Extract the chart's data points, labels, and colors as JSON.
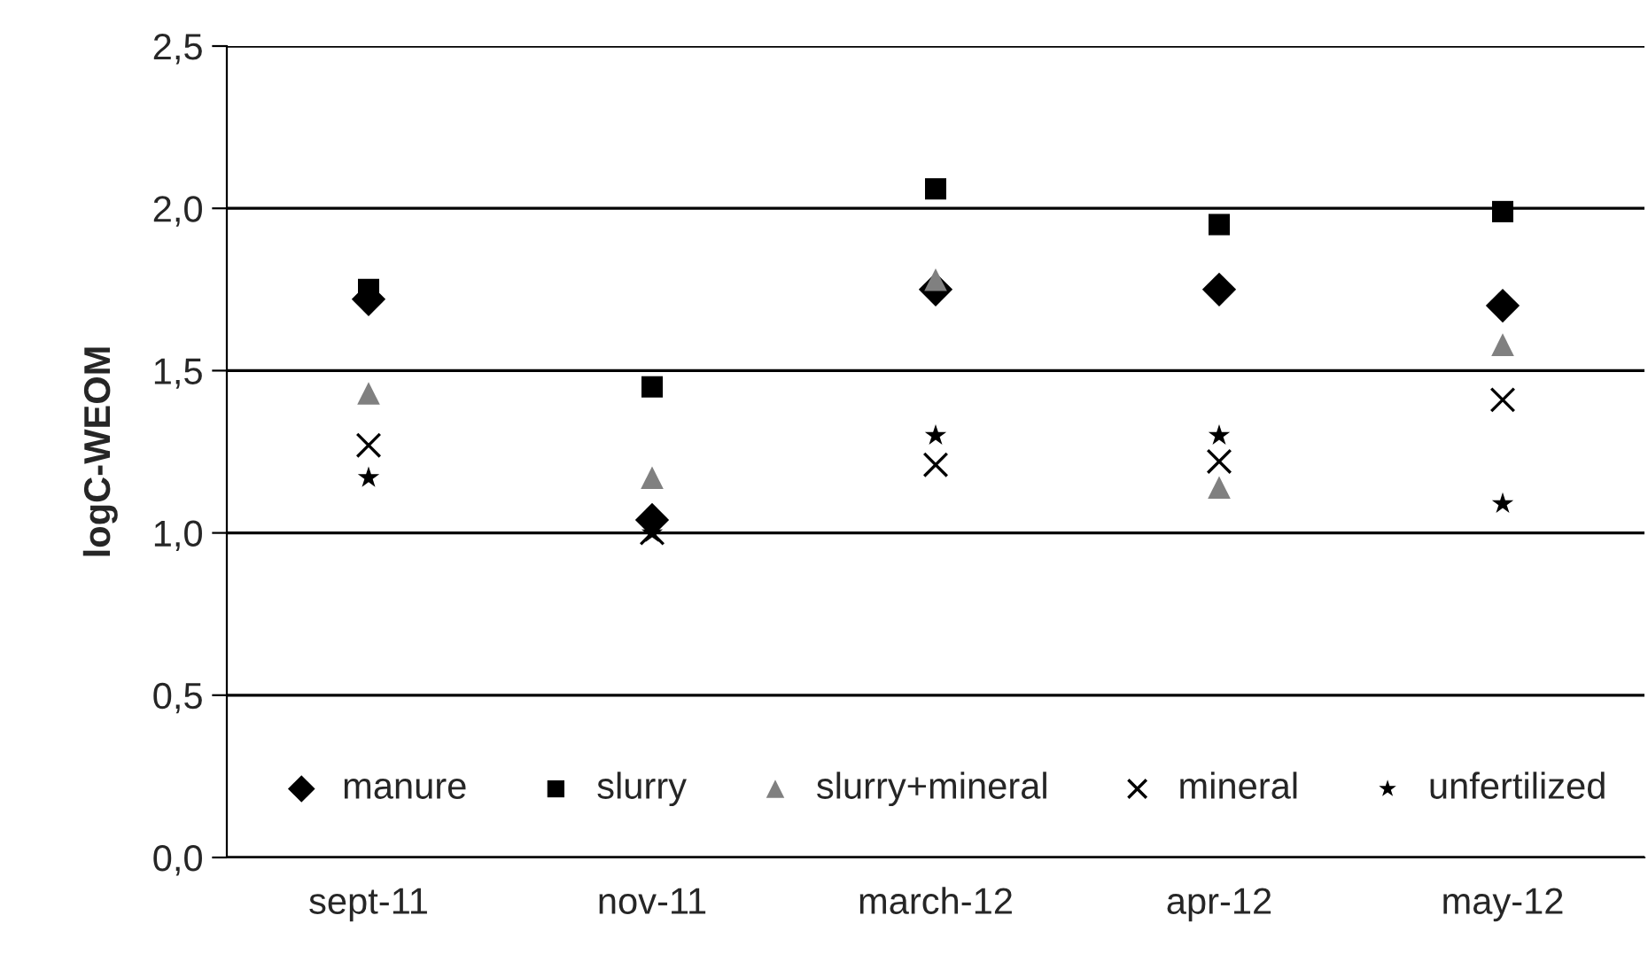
{
  "chart_data": {
    "type": "scatter",
    "ylabel": "logC-WEOM",
    "categories": [
      "sept-11",
      "nov-11",
      "march-12",
      "apr-12",
      "may-12"
    ],
    "series": [
      {
        "name": "manure",
        "color": "#000000",
        "marker": "diamond",
        "values": [
          1.72,
          1.04,
          1.75,
          1.75,
          1.7
        ]
      },
      {
        "name": "slurry",
        "color": "#000000",
        "marker": "square",
        "values": [
          1.75,
          1.45,
          2.06,
          1.95,
          1.99
        ]
      },
      {
        "name": "slurry+mineral",
        "color": "#808080",
        "marker": "triangle",
        "values": [
          1.43,
          1.17,
          1.78,
          1.14,
          1.58
        ]
      },
      {
        "name": "mineral",
        "color": "#000000",
        "marker": "cross",
        "values": [
          1.27,
          1.0,
          1.21,
          1.22,
          1.41
        ]
      },
      {
        "name": "unfertilized",
        "color": "#000000",
        "marker": "star",
        "values": [
          1.17,
          1.0,
          1.3,
          1.3,
          1.09
        ]
      }
    ],
    "ylim": [
      0,
      2.5
    ],
    "yticks": [
      {
        "value": 0,
        "label": "0,0"
      },
      {
        "value": 0.5,
        "label": "0,5"
      },
      {
        "value": 1,
        "label": "1,0"
      },
      {
        "value": 1.5,
        "label": "1,5"
      },
      {
        "value": 2,
        "label": "2,0"
      },
      {
        "value": 2.5,
        "label": "2,5"
      }
    ],
    "grid": "y",
    "legend": "bottom"
  }
}
